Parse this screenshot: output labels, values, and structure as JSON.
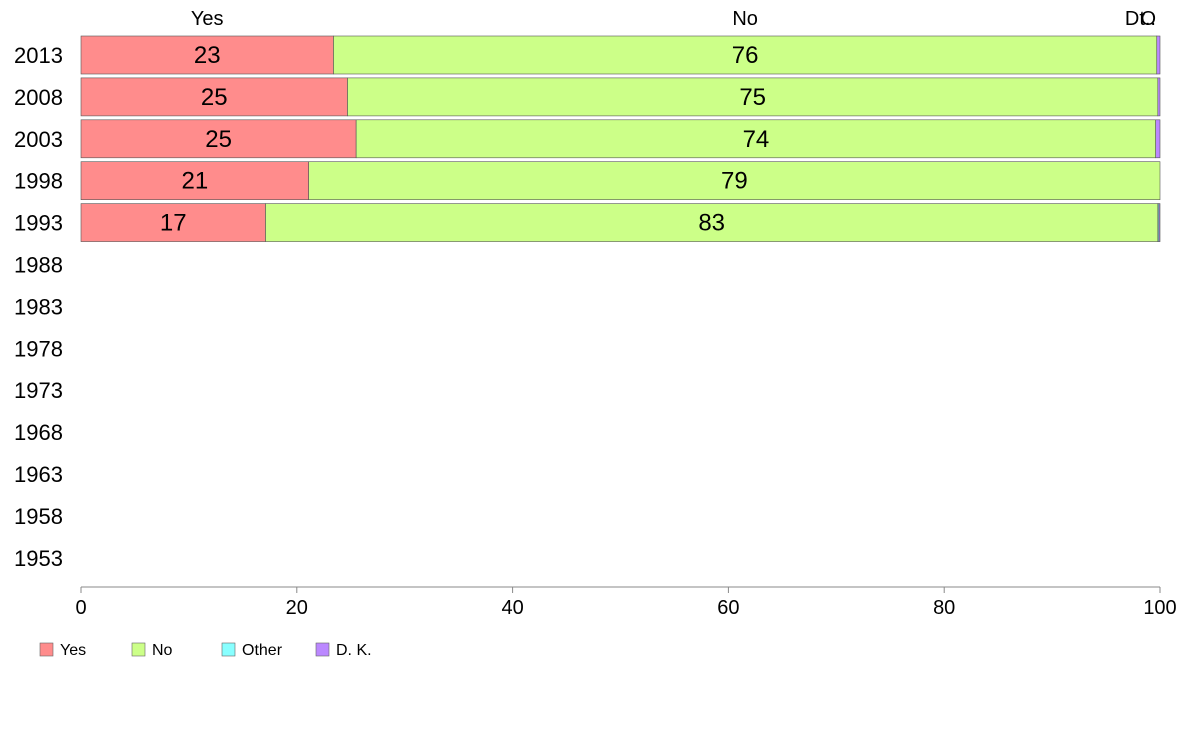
{
  "chart_data": {
    "type": "bar",
    "orientation": "horizontal",
    "stacked": true,
    "categories": [
      "2013",
      "2008",
      "2003",
      "1998",
      "1993",
      "1988",
      "1983",
      "1978",
      "1973",
      "1968",
      "1963",
      "1958",
      "1953"
    ],
    "series": [
      {
        "name": "Yes",
        "color": "#ff8c8c",
        "values": [
          23.4,
          24.7,
          25.5,
          21.1,
          17.1,
          null,
          null,
          null,
          null,
          null,
          null,
          null,
          null
        ]
      },
      {
        "name": "No",
        "color": "#ccff88",
        "values": [
          76.3,
          75.1,
          74.1,
          78.9,
          82.7,
          null,
          null,
          null,
          null,
          null,
          null,
          null,
          null
        ]
      },
      {
        "name": "Other",
        "color": "#88ffff",
        "values": [
          0.0,
          0.0,
          0.0,
          0.0,
          0.1,
          null,
          null,
          null,
          null,
          null,
          null,
          null,
          null
        ]
      },
      {
        "name": "D. K.",
        "color": "#bb88ff",
        "values": [
          0.3,
          0.2,
          0.4,
          0.0,
          0.1,
          null,
          null,
          null,
          null,
          null,
          null,
          null,
          null
        ]
      }
    ],
    "data_labels": {
      "Yes": [
        "23",
        "25",
        "25",
        "21",
        "17"
      ],
      "No": [
        "76",
        "75",
        "74",
        "79",
        "83"
      ]
    },
    "top_labels": [
      "Yes",
      "No",
      "O",
      "Dt.."
    ],
    "xlim": [
      0,
      100
    ],
    "x_ticks": [
      "0",
      "20",
      "40",
      "60",
      "80",
      "100"
    ],
    "title": "",
    "xlabel": "",
    "ylabel": "",
    "grid": false,
    "legend_position": "bottom-left"
  }
}
